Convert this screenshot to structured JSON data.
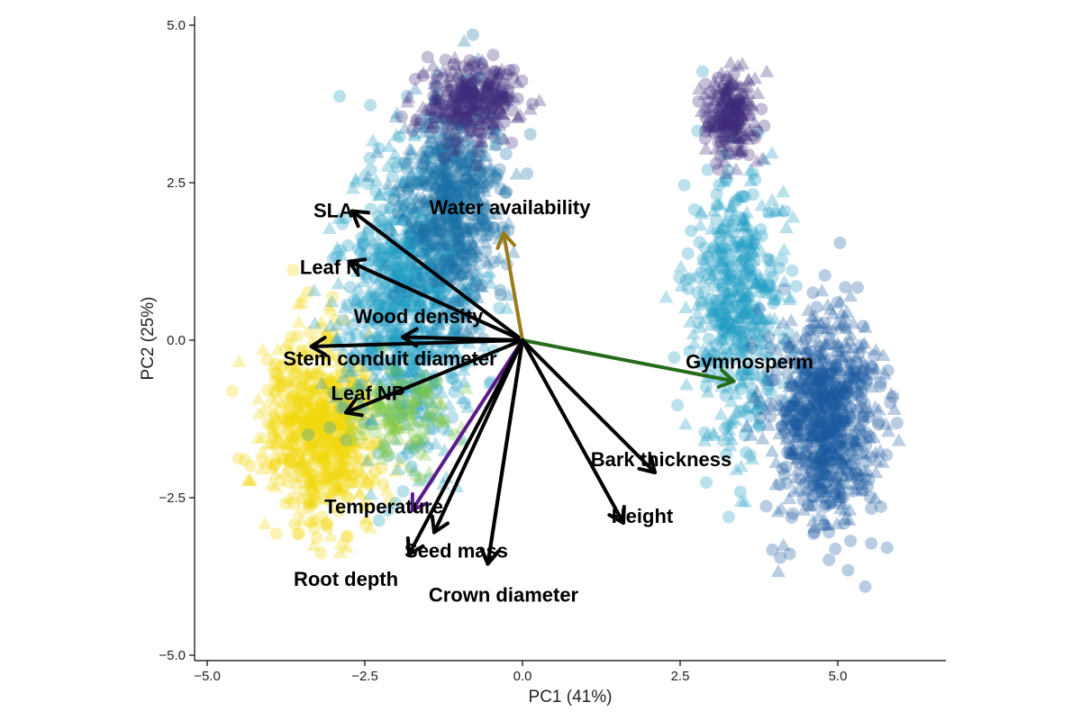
{
  "chart_data": {
    "type": "scatter",
    "title": "",
    "xlabel": "PC1 (41%)",
    "ylabel": "PC2 (25%)",
    "xlim": [
      -5.3,
      6.7
    ],
    "ylim": [
      -5.1,
      5.2
    ],
    "x_ticks": [
      -5.0,
      -2.5,
      0.0,
      2.5,
      5.0
    ],
    "x_tick_labels": [
      "−5.0",
      "−2.5",
      "0.0",
      "2.5",
      "5.0"
    ],
    "y_ticks": [
      -5.0,
      -2.5,
      0.0,
      2.5,
      5.0
    ],
    "y_tick_labels": [
      "−5.0",
      "−2.5",
      "0.0",
      "2.5",
      "5.0"
    ],
    "grid": false,
    "legend": "none",
    "marker_opacity": 0.3,
    "point_clouds": [
      {
        "name": "",
        "color": "#F2D80A",
        "shape": "mixed",
        "center": [
          -3.2,
          -1.4
        ],
        "spread": [
          0.75,
          1.2
        ],
        "count": 700
      },
      {
        "name": "",
        "color": "#1F9CC4",
        "shape": "mixed",
        "center": [
          -1.8,
          0.6
        ],
        "spread": [
          0.9,
          1.9
        ],
        "count": 900
      },
      {
        "name": "",
        "color": "#1A6FA6",
        "shape": "mixed",
        "center": [
          -1.1,
          2.2
        ],
        "spread": [
          0.7,
          1.4
        ],
        "count": 600
      },
      {
        "name": "",
        "color": "#3E2A7A",
        "shape": "mixed",
        "center": [
          -0.8,
          3.8
        ],
        "spread": [
          0.6,
          0.5
        ],
        "count": 300
      },
      {
        "name": "",
        "color": "#7FC742",
        "shape": "mixed",
        "center": [
          -1.9,
          -1.2
        ],
        "spread": [
          0.6,
          0.6
        ],
        "count": 120
      },
      {
        "name": "",
        "color": "#1F9CC4",
        "shape": "mixed",
        "center": [
          3.4,
          0.6
        ],
        "spread": [
          0.6,
          1.8
        ],
        "count": 500
      },
      {
        "name": "",
        "color": "#1A5A9E",
        "shape": "mixed",
        "center": [
          4.8,
          -1.2
        ],
        "spread": [
          0.7,
          1.4
        ],
        "count": 800
      },
      {
        "name": "",
        "color": "#3E2A7A",
        "shape": "mixed",
        "center": [
          3.3,
          3.6
        ],
        "spread": [
          0.35,
          0.6
        ],
        "count": 220
      }
    ],
    "loadings": [
      {
        "label": "SLA",
        "end": [
          -2.7,
          2.05
        ],
        "color": "#000000",
        "label_pos": [
          -3.0,
          1.95
        ]
      },
      {
        "label": "Leaf N",
        "end": [
          -2.75,
          1.25
        ],
        "color": "#000000",
        "label_pos": [
          -3.05,
          1.05
        ]
      },
      {
        "label": "Wood density",
        "end": [
          -1.9,
          0.05
        ],
        "color": "#000000",
        "label_pos": [
          -1.65,
          0.27
        ]
      },
      {
        "label": "Stem conduit diameter",
        "end": [
          -3.35,
          -0.1
        ],
        "color": "#000000",
        "label_pos": [
          -2.1,
          -0.4
        ]
      },
      {
        "label": "Leaf NP",
        "end": [
          -2.8,
          -1.15
        ],
        "color": "#000000",
        "label_pos": [
          -2.45,
          -0.95
        ]
      },
      {
        "label": "Water availability",
        "end": [
          -0.3,
          1.7
        ],
        "color": "#9A7B1B",
        "label_pos": [
          -0.2,
          2.0
        ]
      },
      {
        "label": "Gymnosperm",
        "end": [
          3.35,
          -0.65
        ],
        "color": "#266B1A",
        "label_pos": [
          3.6,
          -0.45
        ]
      },
      {
        "label": "Bark thickness",
        "end": [
          2.1,
          -2.1
        ],
        "color": "#000000",
        "label_pos": [
          2.2,
          -2.0
        ]
      },
      {
        "label": "Height",
        "end": [
          1.6,
          -2.9
        ],
        "color": "#000000",
        "label_pos": [
          1.9,
          -2.9
        ]
      },
      {
        "label": "Temperature",
        "end": [
          -1.75,
          -2.7
        ],
        "color": "#5A1A8A",
        "label_pos": [
          -2.2,
          -2.75
        ]
      },
      {
        "label": "",
        "end": [
          -1.4,
          -3.05
        ],
        "color": "#000000",
        "label_pos": [
          0,
          0
        ]
      },
      {
        "label": "Seed mass",
        "end": [
          -0.55,
          -3.55
        ],
        "color": "#000000",
        "label_pos": [
          -1.05,
          -3.45
        ]
      },
      {
        "label": "Root depth",
        "end": [
          -1.8,
          -3.4
        ],
        "color": "#000000",
        "label_pos": [
          -2.8,
          -3.9
        ]
      },
      {
        "label": "Crown diameter",
        "end": [
          -0.55,
          -3.55
        ],
        "color": "#000000",
        "label_pos": [
          -0.3,
          -4.15
        ]
      }
    ]
  }
}
